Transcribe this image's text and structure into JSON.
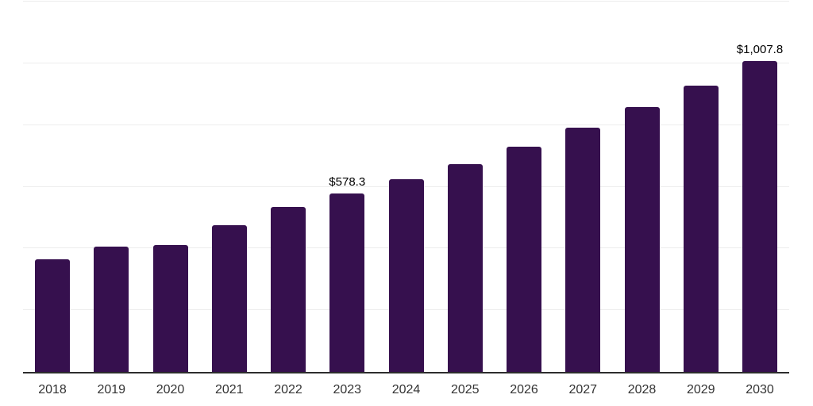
{
  "chart_data": {
    "type": "bar",
    "title": "",
    "xlabel": "",
    "ylabel": "",
    "categories": [
      "2018",
      "2019",
      "2020",
      "2021",
      "2022",
      "2023",
      "2024",
      "2025",
      "2026",
      "2027",
      "2028",
      "2029",
      "2030"
    ],
    "values": [
      365,
      406,
      412,
      475.5,
      535.5,
      578.3,
      625.5,
      675,
      730,
      791,
      859,
      929,
      1007.8
    ],
    "data_labels": {
      "2023": "$578.3",
      "2030": "$1,007.8"
    },
    "ylim": [
      0,
      1206
    ],
    "gridline_values": [
      200,
      400,
      600,
      800,
      1000,
      1200
    ],
    "grid": "horizontal-only",
    "legend": "none",
    "y_axis_tick_labels": "none",
    "colors": {
      "bar": "#36104E",
      "axis": "#2d2d2d",
      "gridline": "#ededed",
      "tick_label": "#333333",
      "data_label": "#000000",
      "background": "#ffffff"
    }
  }
}
